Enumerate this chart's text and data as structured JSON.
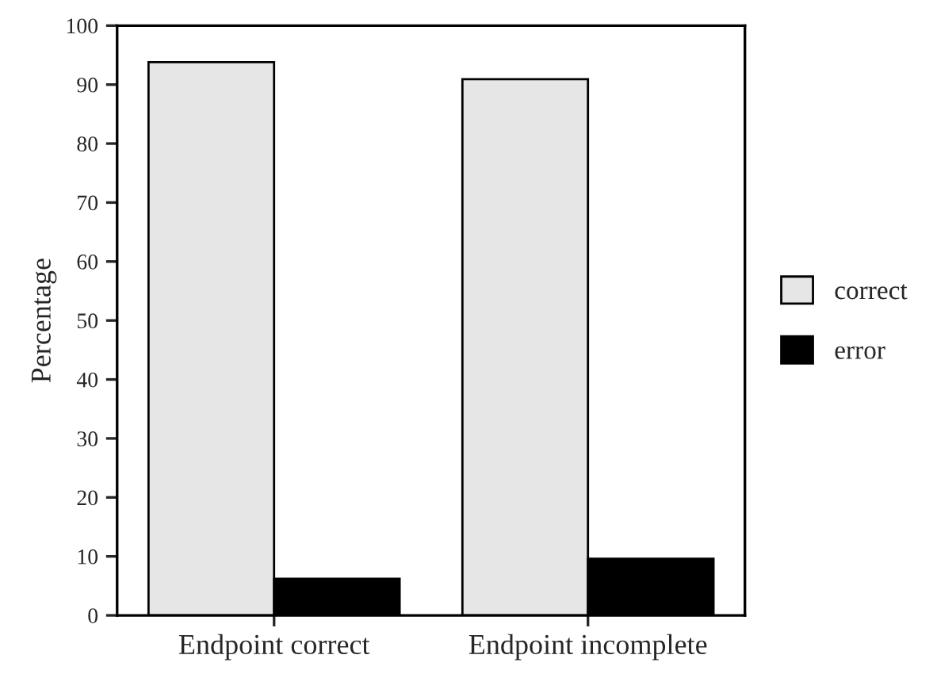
{
  "chart_data": {
    "type": "bar",
    "ylabel": "Percentage",
    "categories": [
      "Endpoint correct",
      "Endpoint incomplete"
    ],
    "series": [
      {
        "name": "correct",
        "color": "#e6e6e6",
        "values": [
          93.8,
          90.9
        ]
      },
      {
        "name": "error",
        "color": "#000000",
        "values": [
          6.2,
          9.6
        ]
      }
    ],
    "ylim": [
      0,
      100
    ],
    "yticks": [
      0,
      10,
      20,
      30,
      40,
      50,
      60,
      70,
      80,
      90,
      100
    ],
    "grid": false,
    "legend": "right"
  }
}
